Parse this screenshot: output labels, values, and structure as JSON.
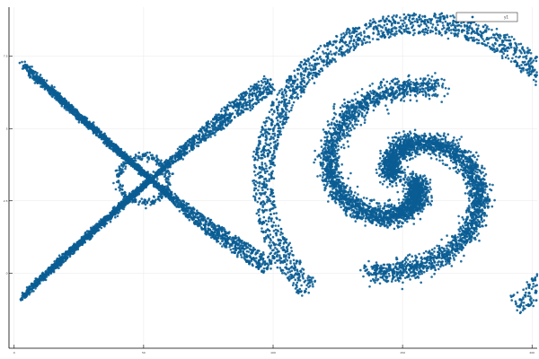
{
  "chart_data": {
    "type": "scatter",
    "title": "",
    "xlabel": "",
    "ylabel": "",
    "xlim": [
      -2,
      202
    ],
    "ylim": [
      -2.6,
      9.2
    ],
    "xticks": [
      0,
      50,
      100,
      150,
      200
    ],
    "yticks": [
      0,
      2.5,
      5,
      7.5
    ],
    "grid": true,
    "legend": "top-right",
    "series": [
      {
        "name": "y1",
        "color": "#0a5d93",
        "marker": "circle",
        "description_structures": [
          "four thin separatrix loops crossing at an X-point near (55, 5)",
          "two thick interlocking spiral arms around (155, 5)",
          "several thin concentric bands enclosing the spiral"
        ]
      }
    ]
  },
  "legend": {
    "entries": [
      {
        "label": "y1",
        "marker_color": "#0a5d93"
      }
    ]
  }
}
